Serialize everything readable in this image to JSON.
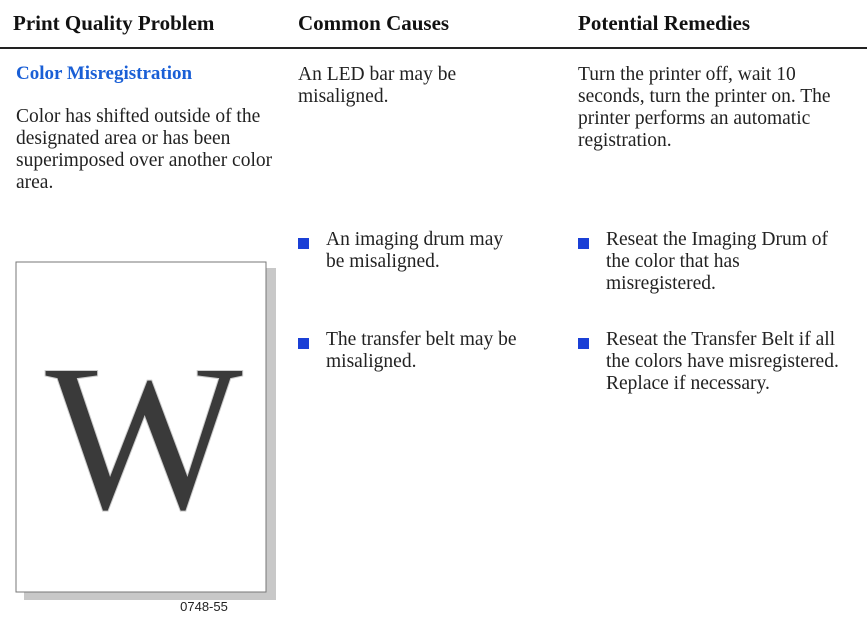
{
  "header": {
    "columns": [
      "Print Quality Problem",
      "Common Causes",
      "Potential Remedies"
    ]
  },
  "problem": {
    "title": "Color Misregistration",
    "description": "Color has shifted outside of the designated area or has been superimposed over another color area."
  },
  "figure": {
    "letter": "W",
    "code": "0748-55"
  },
  "rows": [
    {
      "cause": "An LED bar may be misaligned.",
      "remedy": "Turn the printer off, wait 10 seconds, turn the printer on. The printer performs an automatic registration."
    },
    {
      "cause": "An imaging drum may be misaligned.",
      "remedy": "Reseat the Imaging Drum of the color that has misregistered."
    },
    {
      "cause": "The transfer belt may be misaligned.",
      "remedy": "Reseat the Transfer Belt if all the colors have misregistered. Replace if necessary."
    }
  ]
}
